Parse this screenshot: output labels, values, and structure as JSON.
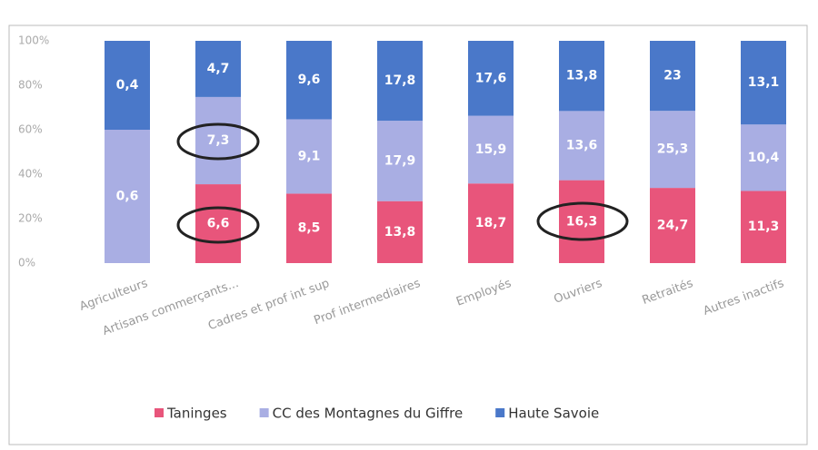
{
  "chart_data": {
    "type": "bar",
    "stacked": "percent",
    "categories": [
      "Agriculteurs",
      "Artisans commerçants...",
      "Cadres et prof int sup",
      "Prof intermediaires",
      "Employés",
      "Ouvriers",
      "Retraités",
      "Autres inactifs"
    ],
    "series": [
      {
        "name": "Taninges",
        "color": "#e8557b",
        "values": [
          null,
          6.6,
          8.5,
          13.8,
          18.7,
          16.3,
          24.7,
          11.3
        ],
        "value_labels": [
          null,
          "6,6",
          "8,5",
          "13,8",
          "18,7",
          "16,3",
          "24,7",
          "11,3"
        ]
      },
      {
        "name": "CC des Montagnes du Giffre",
        "color": "#a9aee3",
        "values": [
          0.6,
          7.3,
          9.1,
          17.9,
          15.9,
          13.6,
          25.3,
          10.4
        ],
        "value_labels": [
          "0,6",
          "7,3",
          "9,1",
          "17,9",
          "15,9",
          "13,6",
          "25,3",
          "10,4"
        ]
      },
      {
        "name": "Haute Savoie",
        "color": "#4a78c9",
        "values": [
          0.4,
          4.7,
          9.6,
          17.8,
          17.6,
          13.8,
          23,
          13.1
        ],
        "value_labels": [
          "0,4",
          "4,7",
          "9,6",
          "17,8",
          "17,6",
          "13,8",
          "23",
          "13,1"
        ]
      }
    ],
    "ylim": [
      0,
      100
    ],
    "yticks": [
      {
        "value": 0,
        "label": "0%"
      },
      {
        "value": 20,
        "label": "20%"
      },
      {
        "value": 40,
        "label": "40%"
      },
      {
        "value": 60,
        "label": "60%"
      },
      {
        "value": 80,
        "label": "80%"
      },
      {
        "value": 100,
        "label": "100%"
      }
    ],
    "legend": "bottom"
  }
}
